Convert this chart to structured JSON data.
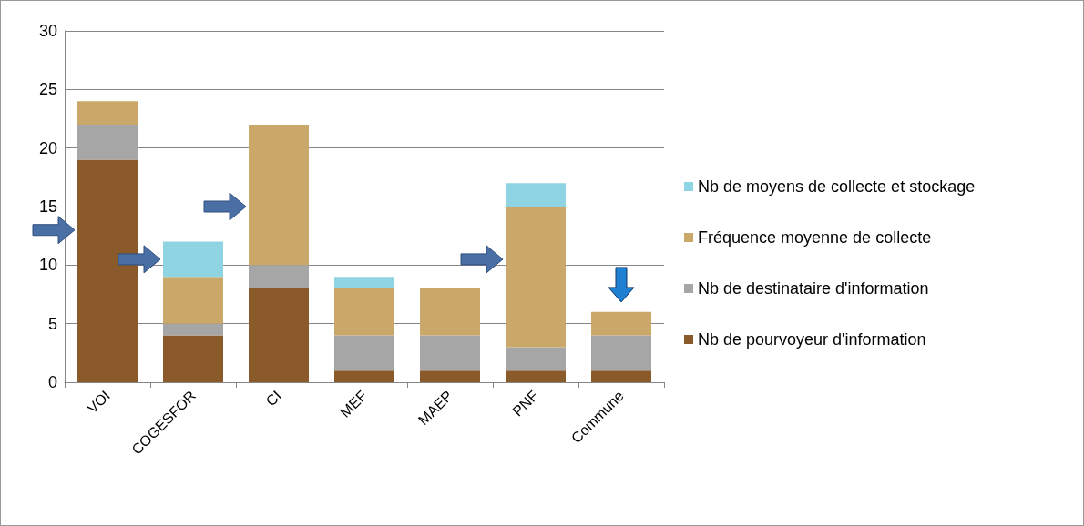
{
  "chart_data": {
    "type": "bar",
    "stacked": true,
    "categories": [
      "VOI",
      "COGESFOR",
      "CI",
      "MEF",
      "MAEP",
      "PNF",
      "Commune"
    ],
    "series": [
      {
        "name": "Nb de pourvoyeur d'information",
        "color": "#8b5a2b",
        "values": [
          19,
          4,
          8,
          1,
          1,
          1,
          1
        ]
      },
      {
        "name": "Nb de destinataire d'information",
        "color": "#a6a6a6",
        "values": [
          3,
          1,
          2,
          3,
          3,
          2,
          3
        ]
      },
      {
        "name": "Fréquence moyenne de collecte",
        "color": "#c9a86a",
        "values": [
          2,
          4,
          12,
          4,
          4,
          12,
          2
        ]
      },
      {
        "name": "Nb de moyens de collecte et stockage",
        "color": "#8fd4e2",
        "values": [
          0,
          3,
          0,
          1,
          0,
          2,
          0
        ]
      }
    ],
    "ylim": [
      0,
      30
    ],
    "yticks": [
      0,
      5,
      10,
      15,
      20,
      25,
      30
    ],
    "grid": "y",
    "legend": "right"
  }
}
